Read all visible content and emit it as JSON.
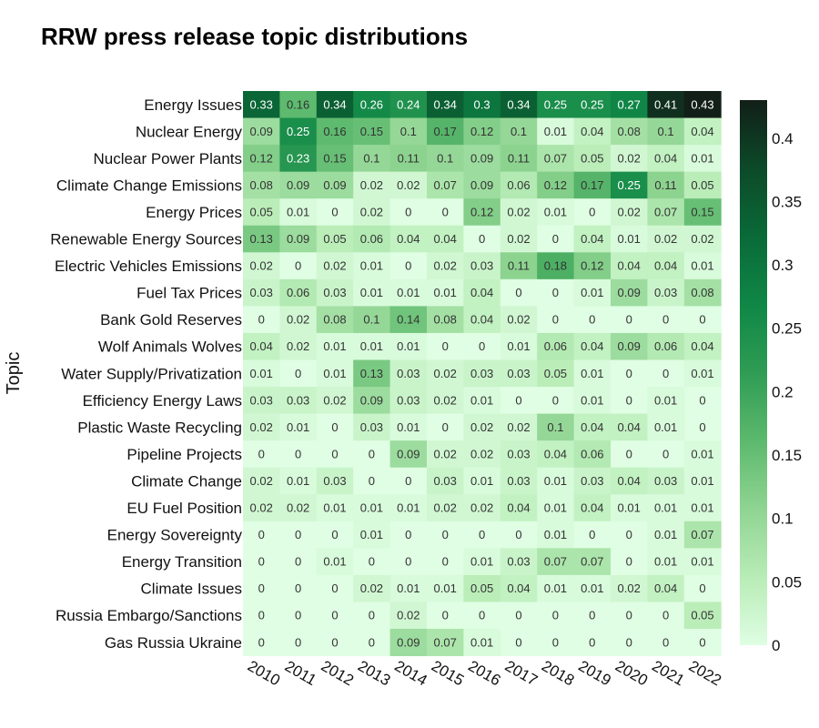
{
  "chart_data": {
    "type": "heatmap",
    "title": "RRW press release topic distributions",
    "ylabel": "Topic",
    "xlabel": "",
    "x": [
      "2010",
      "2011",
      "2012",
      "2013",
      "2014",
      "2015",
      "2016",
      "2017",
      "2018",
      "2019",
      "2020",
      "2021",
      "2022"
    ],
    "y": [
      "Energy Issues",
      "Nuclear Energy",
      "Nuclear Power Plants",
      "Climate Change Emissions",
      "Energy Prices",
      "Renewable Energy Sources",
      "Electric Vehicles Emissions",
      "Fuel Tax Prices",
      "Bank Gold Reserves",
      "Wolf Animals Wolves",
      "Water Supply/Privatization",
      "Efficiency Energy Laws",
      "Plastic Waste Recycling",
      "Pipeline Projects",
      "Climate Change",
      "EU Fuel Position",
      "Energy Sovereignty",
      "Energy Transition",
      "Climate Issues",
      "Russia Embargo/Sanctions",
      "Gas Russia Ukraine"
    ],
    "values": [
      [
        0.33,
        0.16,
        0.34,
        0.26,
        0.24,
        0.34,
        0.3,
        0.34,
        0.25,
        0.25,
        0.27,
        0.41,
        0.43
      ],
      [
        0.09,
        0.25,
        0.16,
        0.15,
        0.1,
        0.17,
        0.12,
        0.1,
        0.01,
        0.04,
        0.08,
        0.1,
        0.04
      ],
      [
        0.12,
        0.23,
        0.15,
        0.1,
        0.11,
        0.1,
        0.09,
        0.11,
        0.07,
        0.05,
        0.02,
        0.04,
        0.01
      ],
      [
        0.08,
        0.09,
        0.09,
        0.02,
        0.02,
        0.07,
        0.09,
        0.06,
        0.12,
        0.17,
        0.25,
        0.11,
        0.05
      ],
      [
        0.05,
        0.01,
        0,
        0.02,
        0,
        0,
        0.12,
        0.02,
        0.01,
        0,
        0.02,
        0.07,
        0.15
      ],
      [
        0.13,
        0.09,
        0.05,
        0.06,
        0.04,
        0.04,
        0,
        0.02,
        0,
        0.04,
        0.01,
        0.02,
        0.02
      ],
      [
        0.02,
        0,
        0.02,
        0.01,
        0,
        0.02,
        0.03,
        0.11,
        0.18,
        0.12,
        0.04,
        0.04,
        0.01
      ],
      [
        0.03,
        0.06,
        0.03,
        0.01,
        0.01,
        0.01,
        0.04,
        0,
        0,
        0.01,
        0.09,
        0.03,
        0.08
      ],
      [
        0,
        0.02,
        0.08,
        0.1,
        0.14,
        0.08,
        0.04,
        0.02,
        0,
        0,
        0,
        0,
        0
      ],
      [
        0.04,
        0.02,
        0.01,
        0.01,
        0.01,
        0,
        0,
        0.01,
        0.06,
        0.04,
        0.09,
        0.06,
        0.04
      ],
      [
        0.01,
        0,
        0.01,
        0.13,
        0.03,
        0.02,
        0.03,
        0.03,
        0.05,
        0.01,
        0,
        0,
        0.01
      ],
      [
        0.03,
        0.03,
        0.02,
        0.09,
        0.03,
        0.02,
        0.01,
        0,
        0,
        0.01,
        0,
        0.01,
        0
      ],
      [
        0.02,
        0.01,
        0,
        0.03,
        0.01,
        0,
        0.02,
        0.02,
        0.1,
        0.04,
        0.04,
        0.01,
        0
      ],
      [
        0,
        0,
        0,
        0,
        0.09,
        0.02,
        0.02,
        0.03,
        0.04,
        0.06,
        0,
        0,
        0.01
      ],
      [
        0.02,
        0.01,
        0.03,
        0,
        0,
        0.03,
        0.01,
        0.03,
        0.01,
        0.03,
        0.04,
        0.03,
        0.01
      ],
      [
        0.02,
        0.02,
        0.01,
        0.01,
        0.01,
        0.02,
        0.02,
        0.04,
        0.01,
        0.04,
        0.01,
        0.01,
        0.01
      ],
      [
        0,
        0,
        0,
        0.01,
        0,
        0,
        0,
        0,
        0.01,
        0,
        0,
        0.01,
        0.07
      ],
      [
        0,
        0,
        0.01,
        0,
        0,
        0,
        0.01,
        0.03,
        0.07,
        0.07,
        0,
        0.01,
        0.01
      ],
      [
        0,
        0,
        0,
        0.02,
        0.01,
        0.01,
        0.05,
        0.04,
        0.01,
        0.01,
        0.02,
        0.04,
        0
      ],
      [
        0,
        0,
        0,
        0,
        0.02,
        0,
        0,
        0,
        0,
        0,
        0,
        0,
        0.05
      ],
      [
        0,
        0,
        0,
        0,
        0.09,
        0.07,
        0.01,
        0,
        0,
        0,
        0,
        0,
        0
      ]
    ],
    "colorbar": {
      "min": 0,
      "max": 0.43,
      "ticks": [
        0,
        0.05,
        0.1,
        0.15,
        0.2,
        0.25,
        0.3,
        0.35,
        0.4
      ],
      "tick_labels": [
        "0",
        "0.05",
        "0.1",
        "0.15",
        "0.2",
        "0.25",
        "0.3",
        "0.35",
        "0.4"
      ],
      "colormap": "greens",
      "colors": [
        "#dffee3",
        "#b8ecb6",
        "#8fd492",
        "#5cb96d",
        "#2f9c54",
        "#0f8746",
        "#0a6a38",
        "#0c4a29",
        "#121f18"
      ]
    }
  }
}
